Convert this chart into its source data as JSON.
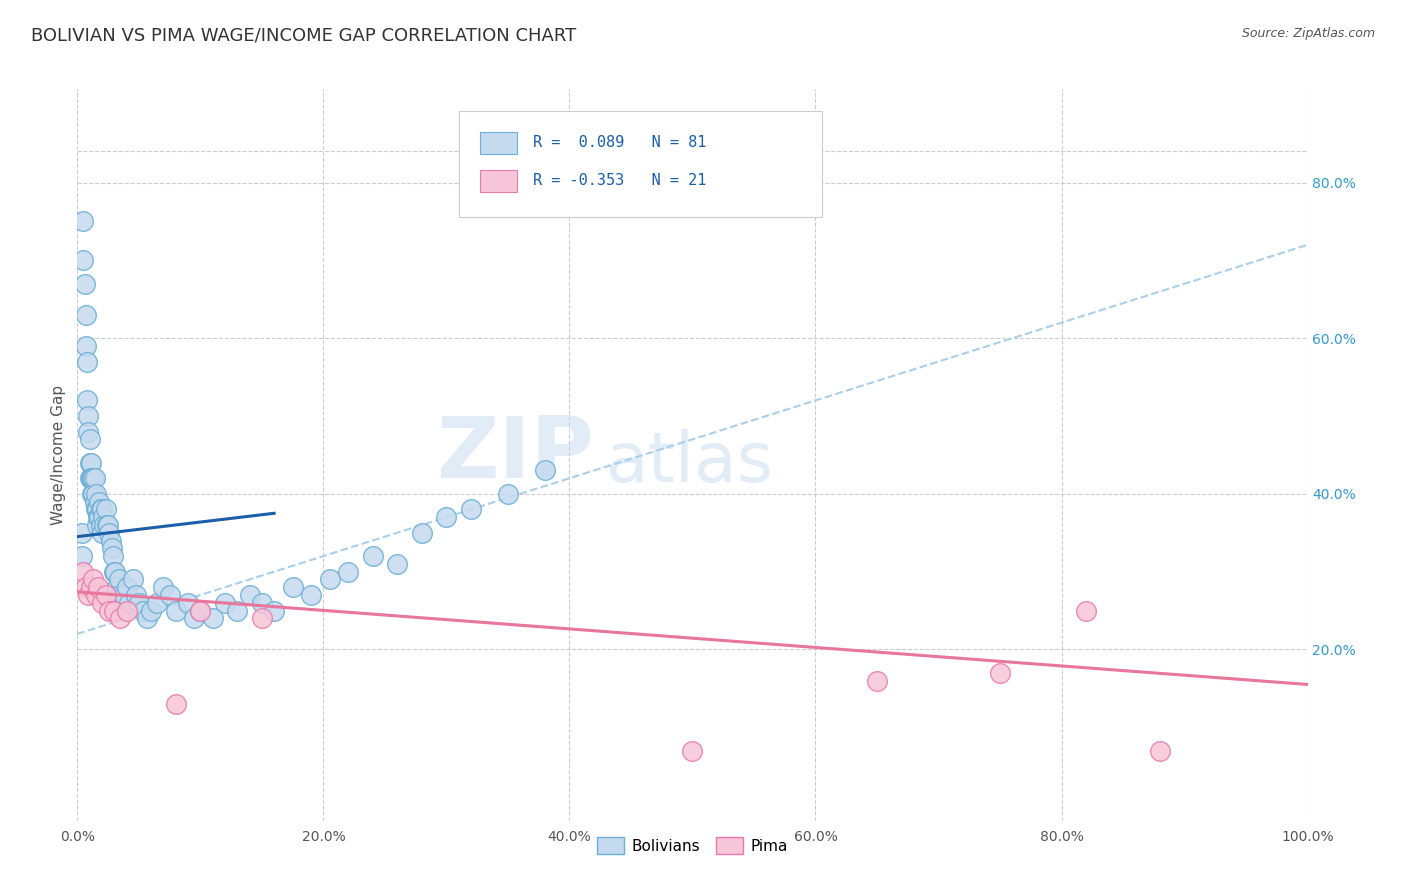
{
  "title": "BOLIVIAN VS PIMA WAGE/INCOME GAP CORRELATION CHART",
  "source_text": "Source: ZipAtlas.com",
  "ylabel": "Wage/Income Gap",
  "xlim": [
    0.0,
    1.0
  ],
  "ylim": [
    -0.02,
    0.92
  ],
  "xtick_positions": [
    0.0,
    0.2,
    0.4,
    0.6,
    0.8,
    1.0
  ],
  "xtick_labels": [
    "0.0%",
    "20.0%",
    "40.0%",
    "60.0%",
    "80.0%",
    "100.0%"
  ],
  "ytick_right_positions": [
    0.2,
    0.4,
    0.6,
    0.8
  ],
  "ytick_right_labels": [
    "20.0%",
    "40.0%",
    "60.0%",
    "80.0%"
  ],
  "blue_face": "#c5daee",
  "blue_edge": "#6baed6",
  "pink_face": "#f7c6d8",
  "pink_edge": "#e87aab",
  "line_blue_color": "#1a5fa8",
  "line_pink_color": "#e8769a",
  "line_dashed_color": "#aacfe8",
  "grid_color": "#cccccc",
  "background": "#ffffff",
  "title_color": "#333333",
  "source_color": "#555555",
  "right_tick_color": "#3399cc",
  "legend_text_color": "#1a5fa8",
  "legend_n_color": "#333333",
  "watermark_color": "#c5daf0",
  "blue_n": 81,
  "pink_n": 21,
  "blue_r": 0.089,
  "pink_r": -0.353,
  "bolivians_label": "Bolivians",
  "pima_label": "Pima",
  "legend_r_blue": "R =  0.089",
  "legend_n_blue": "N = 81",
  "legend_r_pink": "R = -0.353",
  "legend_n_pink": "N = 21",
  "watermark_zip": "ZIP",
  "watermark_atlas": "atlas",
  "blue_x": [
    0.004,
    0.004,
    0.005,
    0.005,
    0.006,
    0.007,
    0.007,
    0.008,
    0.008,
    0.009,
    0.009,
    0.01,
    0.01,
    0.01,
    0.011,
    0.011,
    0.012,
    0.012,
    0.013,
    0.013,
    0.014,
    0.014,
    0.015,
    0.015,
    0.016,
    0.016,
    0.017,
    0.018,
    0.018,
    0.019,
    0.019,
    0.02,
    0.02,
    0.021,
    0.022,
    0.023,
    0.024,
    0.025,
    0.026,
    0.027,
    0.028,
    0.029,
    0.03,
    0.031,
    0.032,
    0.034,
    0.035,
    0.037,
    0.038,
    0.04,
    0.042,
    0.045,
    0.048,
    0.05,
    0.053,
    0.057,
    0.06,
    0.065,
    0.07,
    0.075,
    0.08,
    0.09,
    0.095,
    0.1,
    0.11,
    0.12,
    0.13,
    0.14,
    0.15,
    0.16,
    0.175,
    0.19,
    0.205,
    0.22,
    0.24,
    0.26,
    0.28,
    0.3,
    0.32,
    0.35,
    0.38
  ],
  "blue_y": [
    0.35,
    0.32,
    0.75,
    0.7,
    0.67,
    0.63,
    0.59,
    0.57,
    0.52,
    0.5,
    0.48,
    0.47,
    0.44,
    0.42,
    0.44,
    0.42,
    0.42,
    0.4,
    0.42,
    0.4,
    0.42,
    0.39,
    0.4,
    0.38,
    0.38,
    0.36,
    0.37,
    0.39,
    0.37,
    0.38,
    0.36,
    0.38,
    0.35,
    0.37,
    0.36,
    0.38,
    0.36,
    0.36,
    0.35,
    0.34,
    0.33,
    0.32,
    0.3,
    0.3,
    0.28,
    0.29,
    0.27,
    0.26,
    0.27,
    0.28,
    0.26,
    0.29,
    0.27,
    0.26,
    0.25,
    0.24,
    0.25,
    0.26,
    0.28,
    0.27,
    0.25,
    0.26,
    0.24,
    0.25,
    0.24,
    0.26,
    0.25,
    0.27,
    0.26,
    0.25,
    0.28,
    0.27,
    0.29,
    0.3,
    0.32,
    0.31,
    0.35,
    0.37,
    0.38,
    0.4,
    0.43
  ],
  "pink_x": [
    0.005,
    0.007,
    0.009,
    0.011,
    0.013,
    0.015,
    0.017,
    0.02,
    0.023,
    0.026,
    0.03,
    0.035,
    0.04,
    0.08,
    0.1,
    0.15,
    0.5,
    0.65,
    0.75,
    0.82,
    0.88
  ],
  "pink_y": [
    0.3,
    0.28,
    0.27,
    0.28,
    0.29,
    0.27,
    0.28,
    0.26,
    0.27,
    0.25,
    0.25,
    0.24,
    0.25,
    0.13,
    0.25,
    0.24,
    0.07,
    0.16,
    0.17,
    0.25,
    0.07
  ],
  "blue_line_x0": 0.0,
  "blue_line_y0": 0.345,
  "blue_line_x1": 0.16,
  "blue_line_y1": 0.375,
  "pink_line_x0": 0.0,
  "pink_line_y0": 0.274,
  "pink_line_x1": 1.0,
  "pink_line_y1": 0.155,
  "dash_line_x0": 0.0,
  "dash_line_y0": 0.22,
  "dash_line_x1": 1.0,
  "dash_line_y1": 0.72
}
